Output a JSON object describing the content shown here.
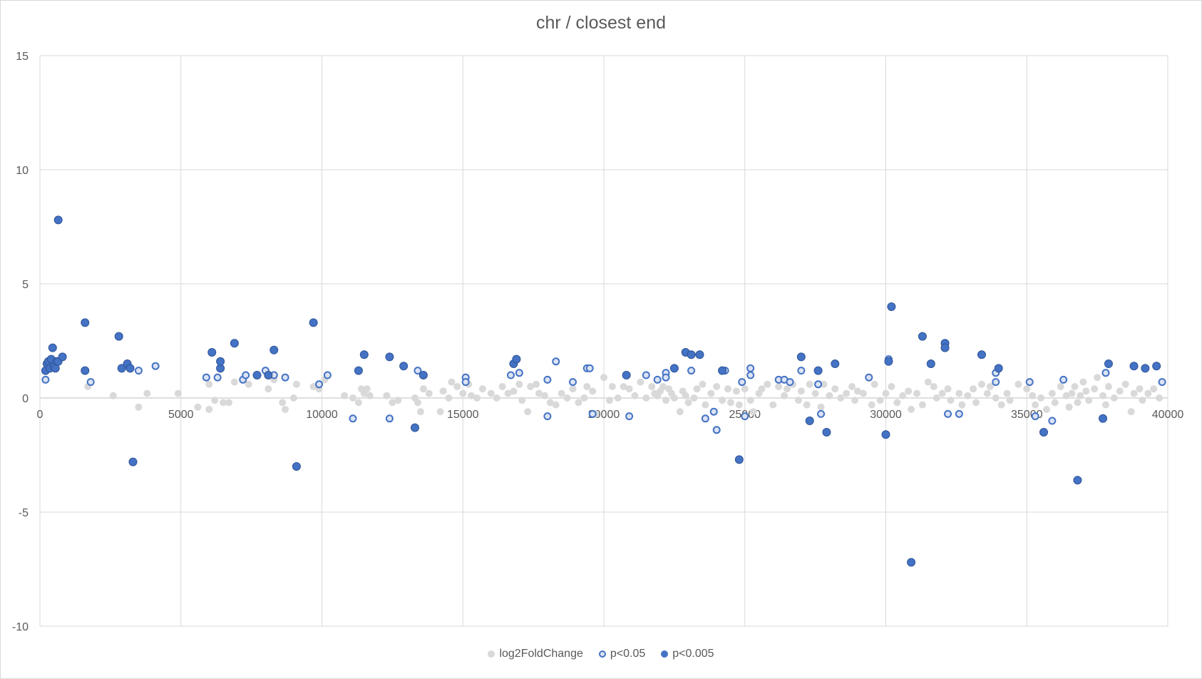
{
  "chart_data": {
    "type": "scatter",
    "title": "chr / closest end",
    "xlabel": "",
    "ylabel": "",
    "xlim": [
      0,
      40000
    ],
    "ylim": [
      -10,
      15
    ],
    "x_ticks": [
      0,
      5000,
      10000,
      15000,
      20000,
      25000,
      30000,
      35000,
      40000
    ],
    "y_ticks": [
      15,
      10,
      5,
      0,
      -5,
      -10
    ],
    "grid": "vertical and horizontal major gridlines",
    "legend_position": "bottom",
    "colors": {
      "background": "#d9d9d9",
      "p005": "#4472c4",
      "p0005": "#4472c4",
      "p005_fill": "#dbe3f3",
      "gridline": "#d9d9d9"
    },
    "series": [
      {
        "name": "log2FoldChange",
        "marker": "filled-grey",
        "points": [
          [
            1700,
            0.5
          ],
          [
            2600,
            0.1
          ],
          [
            3500,
            -0.4
          ],
          [
            3800,
            0.2
          ],
          [
            4900,
            0.2
          ],
          [
            5600,
            -0.4
          ],
          [
            6000,
            0.6
          ],
          [
            6000,
            -0.5
          ],
          [
            6200,
            -0.1
          ],
          [
            6500,
            -0.2
          ],
          [
            6700,
            -0.2
          ],
          [
            6900,
            0.7
          ],
          [
            7400,
            0.6
          ],
          [
            8100,
            0.4
          ],
          [
            8300,
            0.8
          ],
          [
            8600,
            -0.2
          ],
          [
            8700,
            -0.5
          ],
          [
            9000,
            0.0
          ],
          [
            9100,
            0.6
          ],
          [
            9700,
            0.5
          ],
          [
            9900,
            0.4
          ],
          [
            10100,
            0.8
          ],
          [
            10800,
            0.1
          ],
          [
            11100,
            0.0
          ],
          [
            11300,
            -0.2
          ],
          [
            11400,
            0.4
          ],
          [
            11500,
            0.2
          ],
          [
            11600,
            0.4
          ],
          [
            11700,
            0.1
          ],
          [
            12300,
            0.1
          ],
          [
            12500,
            -0.2
          ],
          [
            12700,
            -0.1
          ],
          [
            13300,
            0.0
          ],
          [
            13400,
            -0.2
          ],
          [
            13500,
            -0.6
          ],
          [
            13600,
            0.4
          ],
          [
            13800,
            0.2
          ],
          [
            14200,
            -0.6
          ],
          [
            14300,
            0.3
          ],
          [
            14500,
            0.0
          ],
          [
            14600,
            0.7
          ],
          [
            14800,
            0.5
          ],
          [
            15000,
            0.2
          ],
          [
            15200,
            0.6
          ],
          [
            15300,
            0.1
          ],
          [
            15500,
            0.0
          ],
          [
            15700,
            0.4
          ],
          [
            16000,
            0.2
          ],
          [
            16200,
            0.0
          ],
          [
            16400,
            0.5
          ],
          [
            16600,
            0.2
          ],
          [
            16800,
            0.3
          ],
          [
            17000,
            0.6
          ],
          [
            17100,
            -0.1
          ],
          [
            17300,
            -0.6
          ],
          [
            17400,
            0.5
          ],
          [
            17600,
            0.6
          ],
          [
            17700,
            0.2
          ],
          [
            17900,
            0.1
          ],
          [
            18100,
            -0.2
          ],
          [
            18300,
            -0.3
          ],
          [
            18500,
            0.2
          ],
          [
            18700,
            0.0
          ],
          [
            18900,
            0.4
          ],
          [
            19100,
            -0.2
          ],
          [
            19300,
            0.0
          ],
          [
            19400,
            0.5
          ],
          [
            19600,
            0.3
          ],
          [
            19700,
            -0.7
          ],
          [
            20000,
            0.9
          ],
          [
            20200,
            -0.1
          ],
          [
            20300,
            0.5
          ],
          [
            20500,
            0.0
          ],
          [
            20700,
            0.5
          ],
          [
            20900,
            0.4
          ],
          [
            21100,
            0.1
          ],
          [
            21300,
            0.7
          ],
          [
            21500,
            0.0
          ],
          [
            21700,
            0.5
          ],
          [
            21800,
            0.2
          ],
          [
            21900,
            0.1
          ],
          [
            22000,
            0.3
          ],
          [
            22100,
            0.5
          ],
          [
            22200,
            -0.1
          ],
          [
            22300,
            0.4
          ],
          [
            22400,
            0.2
          ],
          [
            22500,
            0.0
          ],
          [
            22700,
            -0.6
          ],
          [
            22800,
            0.3
          ],
          [
            22900,
            0.1
          ],
          [
            23000,
            -0.2
          ],
          [
            23200,
            0.0
          ],
          [
            23300,
            0.4
          ],
          [
            23500,
            0.6
          ],
          [
            23600,
            -0.3
          ],
          [
            23800,
            0.2
          ],
          [
            24000,
            0.5
          ],
          [
            24200,
            -0.1
          ],
          [
            24400,
            0.4
          ],
          [
            24500,
            -0.2
          ],
          [
            24700,
            0.3
          ],
          [
            24800,
            -0.3
          ],
          [
            25000,
            0.4
          ],
          [
            25200,
            -0.1
          ],
          [
            25300,
            -0.6
          ],
          [
            25500,
            0.2
          ],
          [
            25600,
            0.4
          ],
          [
            25800,
            0.6
          ],
          [
            26000,
            -0.3
          ],
          [
            26200,
            0.5
          ],
          [
            26400,
            0.1
          ],
          [
            26500,
            0.4
          ],
          [
            26700,
            0.6
          ],
          [
            26900,
            -0.1
          ],
          [
            27000,
            0.3
          ],
          [
            27200,
            -0.3
          ],
          [
            27300,
            0.6
          ],
          [
            27500,
            0.2
          ],
          [
            27700,
            -0.4
          ],
          [
            27800,
            0.6
          ],
          [
            28000,
            0.1
          ],
          [
            28200,
            0.4
          ],
          [
            28400,
            0.0
          ],
          [
            28600,
            0.2
          ],
          [
            28800,
            0.5
          ],
          [
            28900,
            -0.1
          ],
          [
            29000,
            0.3
          ],
          [
            29200,
            0.2
          ],
          [
            29500,
            -0.3
          ],
          [
            29600,
            0.6
          ],
          [
            29800,
            -0.1
          ],
          [
            30000,
            0.2
          ],
          [
            30200,
            0.5
          ],
          [
            30400,
            -0.2
          ],
          [
            30600,
            0.1
          ],
          [
            30800,
            0.3
          ],
          [
            30900,
            -0.5
          ],
          [
            31100,
            0.2
          ],
          [
            31300,
            -0.3
          ],
          [
            31500,
            0.7
          ],
          [
            31700,
            0.5
          ],
          [
            31800,
            0.0
          ],
          [
            32000,
            0.2
          ],
          [
            32200,
            0.4
          ],
          [
            32300,
            -0.1
          ],
          [
            32600,
            0.2
          ],
          [
            32700,
            -0.3
          ],
          [
            32900,
            0.1
          ],
          [
            33100,
            0.4
          ],
          [
            33200,
            -0.2
          ],
          [
            33400,
            0.6
          ],
          [
            33600,
            0.2
          ],
          [
            33700,
            0.5
          ],
          [
            33900,
            0.0
          ],
          [
            34100,
            -0.3
          ],
          [
            34300,
            0.2
          ],
          [
            34400,
            -0.1
          ],
          [
            34700,
            0.6
          ],
          [
            35000,
            0.4
          ],
          [
            35200,
            0.1
          ],
          [
            35300,
            -0.3
          ],
          [
            35500,
            0.0
          ],
          [
            35700,
            -0.5
          ],
          [
            35900,
            0.2
          ],
          [
            36000,
            -0.2
          ],
          [
            36200,
            0.5
          ],
          [
            36400,
            0.1
          ],
          [
            36500,
            -0.4
          ],
          [
            36600,
            0.2
          ],
          [
            36700,
            0.5
          ],
          [
            36800,
            -0.2
          ],
          [
            36900,
            0.1
          ],
          [
            37000,
            0.7
          ],
          [
            37100,
            0.3
          ],
          [
            37200,
            -0.1
          ],
          [
            37400,
            0.4
          ],
          [
            37500,
            0.9
          ],
          [
            37700,
            0.1
          ],
          [
            37800,
            -0.3
          ],
          [
            37900,
            0.5
          ],
          [
            38100,
            0.0
          ],
          [
            38300,
            0.3
          ],
          [
            38500,
            0.6
          ],
          [
            38700,
            -0.6
          ],
          [
            38800,
            0.2
          ],
          [
            39000,
            0.4
          ],
          [
            39100,
            -0.1
          ],
          [
            39300,
            0.2
          ],
          [
            39500,
            0.4
          ],
          [
            39700,
            0.0
          ]
        ]
      },
      {
        "name": "p<0.05",
        "marker": "hollow-blue",
        "points": [
          [
            200,
            0.8
          ],
          [
            1800,
            0.7
          ],
          [
            3500,
            1.2
          ],
          [
            4100,
            1.4
          ],
          [
            5900,
            0.9
          ],
          [
            6300,
            0.9
          ],
          [
            7200,
            0.8
          ],
          [
            7300,
            1.0
          ],
          [
            8000,
            1.2
          ],
          [
            8300,
            1.0
          ],
          [
            8700,
            0.9
          ],
          [
            9900,
            0.6
          ],
          [
            10200,
            1.0
          ],
          [
            11100,
            -0.9
          ],
          [
            12400,
            -0.9
          ],
          [
            13400,
            1.2
          ],
          [
            15100,
            0.9
          ],
          [
            15100,
            0.7
          ],
          [
            16700,
            1.0
          ],
          [
            17000,
            1.1
          ],
          [
            18000,
            0.8
          ],
          [
            18000,
            -0.8
          ],
          [
            18300,
            1.6
          ],
          [
            18900,
            0.7
          ],
          [
            19400,
            1.3
          ],
          [
            19500,
            1.3
          ],
          [
            19600,
            -0.7
          ],
          [
            20900,
            -0.8
          ],
          [
            21500,
            1.0
          ],
          [
            21900,
            0.8
          ],
          [
            22200,
            1.1
          ],
          [
            22200,
            0.9
          ],
          [
            23100,
            1.2
          ],
          [
            23600,
            -0.9
          ],
          [
            23900,
            -0.6
          ],
          [
            24000,
            -1.4
          ],
          [
            24300,
            1.2
          ],
          [
            24900,
            0.7
          ],
          [
            25000,
            -0.8
          ],
          [
            25200,
            1.3
          ],
          [
            25200,
            1.0
          ],
          [
            26200,
            0.8
          ],
          [
            26400,
            0.8
          ],
          [
            26600,
            0.7
          ],
          [
            27000,
            1.2
          ],
          [
            27600,
            0.6
          ],
          [
            27700,
            -0.7
          ],
          [
            29400,
            0.9
          ],
          [
            30100,
            1.7
          ],
          [
            32200,
            -0.7
          ],
          [
            32600,
            -0.7
          ],
          [
            33900,
            1.1
          ],
          [
            33900,
            0.7
          ],
          [
            35100,
            0.7
          ],
          [
            35300,
            -0.8
          ],
          [
            35900,
            -1.0
          ],
          [
            36300,
            0.8
          ],
          [
            37800,
            1.1
          ],
          [
            39800,
            0.7
          ]
        ]
      },
      {
        "name": "p<0.005",
        "marker": "filled-blue",
        "points": [
          [
            200,
            1.2
          ],
          [
            250,
            1.5
          ],
          [
            300,
            1.6
          ],
          [
            350,
            1.3
          ],
          [
            400,
            1.7
          ],
          [
            450,
            2.2
          ],
          [
            500,
            1.4
          ],
          [
            550,
            1.3
          ],
          [
            600,
            1.6
          ],
          [
            650,
            1.6
          ],
          [
            650,
            7.8
          ],
          [
            800,
            1.8
          ],
          [
            1600,
            3.3
          ],
          [
            1600,
            1.2
          ],
          [
            2800,
            2.7
          ],
          [
            2900,
            1.3
          ],
          [
            3100,
            1.5
          ],
          [
            3200,
            1.3
          ],
          [
            3300,
            -2.8
          ],
          [
            6100,
            2.0
          ],
          [
            6400,
            1.3
          ],
          [
            6400,
            1.6
          ],
          [
            6900,
            2.4
          ],
          [
            7700,
            1.0
          ],
          [
            8100,
            1.0
          ],
          [
            8300,
            2.1
          ],
          [
            9100,
            -3.0
          ],
          [
            9700,
            3.3
          ],
          [
            11300,
            1.2
          ],
          [
            11500,
            1.9
          ],
          [
            12400,
            1.8
          ],
          [
            12900,
            1.4
          ],
          [
            13300,
            -1.3
          ],
          [
            13600,
            1.0
          ],
          [
            16800,
            1.5
          ],
          [
            16900,
            1.7
          ],
          [
            20800,
            1.0
          ],
          [
            22500,
            1.3
          ],
          [
            22900,
            2.0
          ],
          [
            23100,
            1.9
          ],
          [
            23400,
            1.9
          ],
          [
            24200,
            1.2
          ],
          [
            24800,
            -2.7
          ],
          [
            27000,
            1.8
          ],
          [
            27300,
            -1.0
          ],
          [
            27600,
            1.2
          ],
          [
            27900,
            -1.5
          ],
          [
            28200,
            1.5
          ],
          [
            30000,
            -1.6
          ],
          [
            30100,
            1.6
          ],
          [
            30200,
            4.0
          ],
          [
            30900,
            -7.2
          ],
          [
            31300,
            2.7
          ],
          [
            31600,
            1.5
          ],
          [
            32100,
            2.4
          ],
          [
            32100,
            2.2
          ],
          [
            33400,
            1.9
          ],
          [
            34000,
            1.3
          ],
          [
            35600,
            -1.5
          ],
          [
            36800,
            -3.6
          ],
          [
            37700,
            -0.9
          ],
          [
            37900,
            1.5
          ],
          [
            38800,
            1.4
          ],
          [
            39200,
            1.3
          ],
          [
            39600,
            1.4
          ]
        ]
      }
    ]
  }
}
